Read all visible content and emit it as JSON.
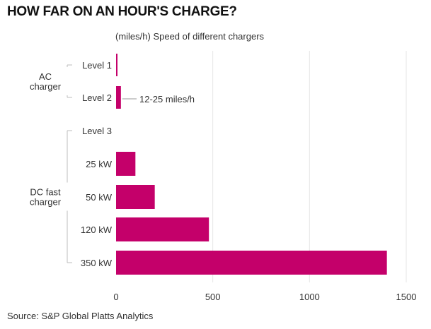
{
  "title": "HOW FAR ON AN HOUR'S CHARGE?",
  "subtitle": "(miles/h) Speed of different chargers",
  "source": "Source: S&P Global Platts Analytics",
  "colors": {
    "bar": "#c4006a",
    "grid": "#e6e6e6",
    "bracket": "#bdbdbd"
  },
  "chart_data": {
    "type": "bar",
    "orientation": "horizontal",
    "categories": [
      "Level 1",
      "Level 2",
      "Level 3",
      "25 kW",
      "50 kW",
      "120 kW",
      "350 kW"
    ],
    "values": [
      5,
      25,
      null,
      100,
      200,
      480,
      1400
    ],
    "groups": [
      {
        "label_lines": [
          "AC",
          "charger"
        ],
        "categories": [
          "Level 1",
          "Level 2"
        ]
      },
      {
        "label_lines": [
          "DC fast",
          "charger"
        ],
        "categories": [
          "Level 3",
          "25 kW",
          "50 kW",
          "120 kW",
          "350 kW"
        ]
      }
    ],
    "annotation": {
      "category": "Level 2",
      "text": "12-25 miles/h"
    },
    "xlim": [
      0,
      1500
    ],
    "xticks": [
      0,
      500,
      1000,
      1500
    ],
    "grid": true
  }
}
